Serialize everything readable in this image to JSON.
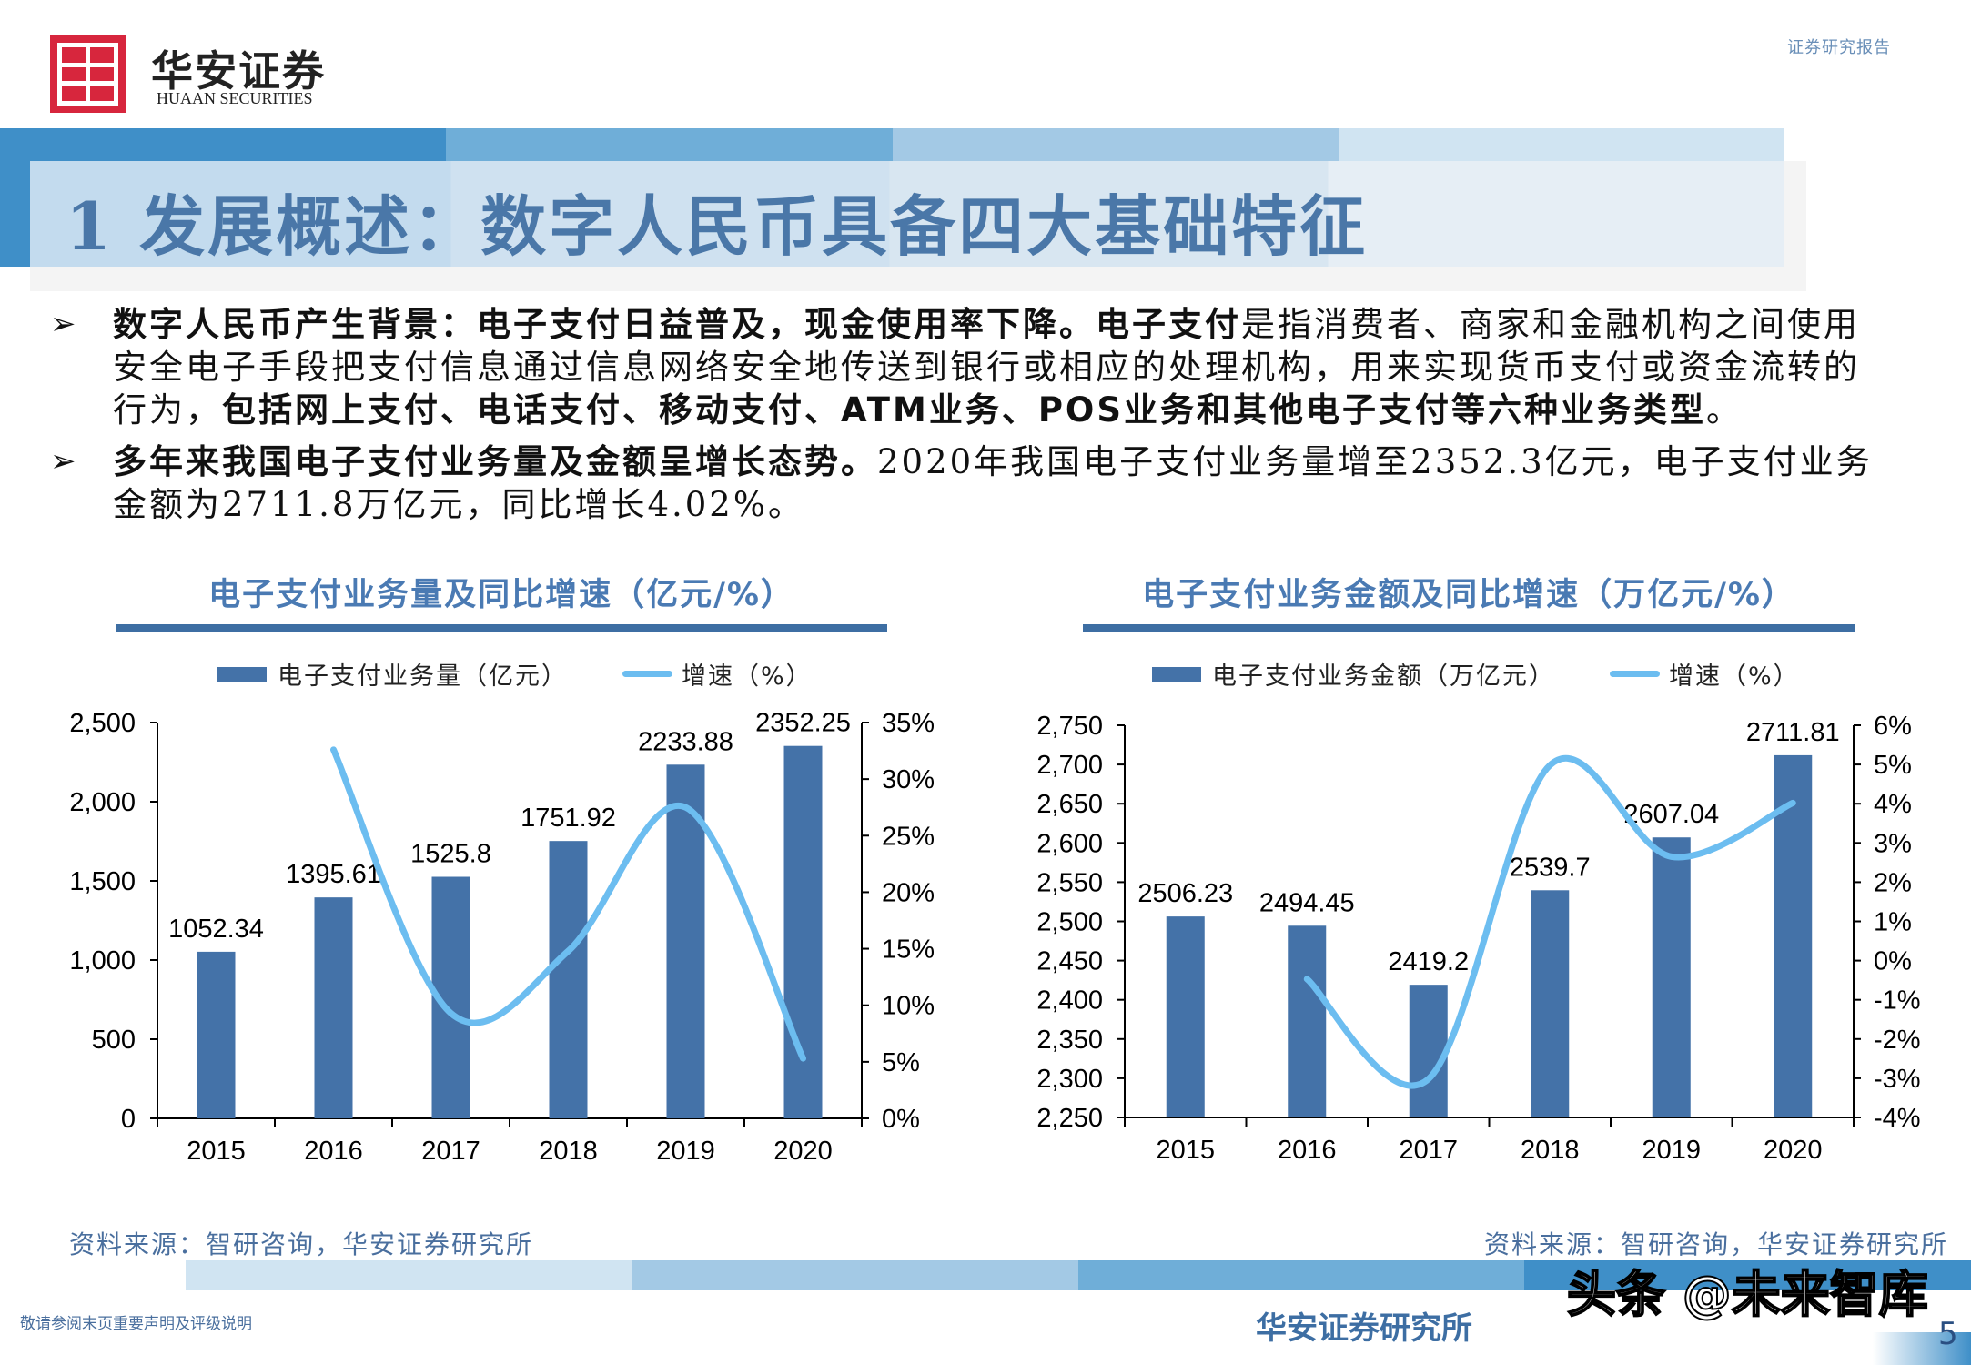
{
  "header": {
    "brand_cn": "华安证券",
    "brand_en": "HUAAN SECURITIES",
    "report_tag": "证券研究报告",
    "title": "1 发展概述：数字人民币具备四大基础特征"
  },
  "colors": {
    "strip": [
      "#3f8fc8",
      "#6faed8",
      "#a3c9e5",
      "#d0e4f2"
    ],
    "bar": "#4472a8",
    "line": "#6cbdf0",
    "title": "#4a77a8"
  },
  "bullets": [
    {
      "segments": [
        {
          "bold": true,
          "text": "数字人民币产生背景：电子支付日益普及，现金使用率下降。电子支付"
        },
        {
          "bold": false,
          "text": "是指消费者、商家和金融机构之间使用安全电子手段把支付信息通过信息网络安全地传送到银行或相应的处理机构，用来实现货币支付或资金流转的行为，"
        },
        {
          "bold": true,
          "text": "包括网上支付、电话支付、移动支付、ATM业务、POS业务和其他电子支付等六种业务类型"
        },
        {
          "bold": false,
          "text": "。"
        }
      ]
    },
    {
      "segments": [
        {
          "bold": true,
          "text": "多年来我国电子支付业务量及金额呈增长态势。"
        },
        {
          "bold": false,
          "text": "2020年我国电子支付业务量增至2352.3亿元，电子支付业务金额为2711.8万亿元，同比增长4.02%。"
        }
      ]
    }
  ],
  "chart_data": [
    {
      "type": "bar+line",
      "title": "电子支付业务量及同比增速（亿元/%）",
      "categories": [
        "2015",
        "2016",
        "2017",
        "2018",
        "2019",
        "2020"
      ],
      "series": [
        {
          "name": "电子支付业务量（亿元）",
          "type": "bar",
          "axis": "left",
          "values": [
            1052.34,
            1395.61,
            1525.8,
            1751.92,
            2233.88,
            2352.25
          ],
          "labels": [
            "1052.34",
            "1395.61",
            "1525.8",
            "1751.92",
            "2233.88",
            "2352.25"
          ]
        },
        {
          "name": "增速（%）",
          "type": "line",
          "axis": "right",
          "values": [
            null,
            32.6,
            9.3,
            14.8,
            27.5,
            5.3
          ]
        }
      ],
      "y_left": {
        "range": [
          0,
          2500
        ],
        "ticks": [
          "0",
          "500",
          "1,000",
          "1,500",
          "2,000",
          "2,500"
        ]
      },
      "y_right": {
        "range": [
          0,
          35
        ],
        "ticks": [
          "0%",
          "5%",
          "10%",
          "15%",
          "20%",
          "25%",
          "30%",
          "35%"
        ]
      },
      "legend": "top",
      "grid": false,
      "source": "资料来源：智研咨询，华安证券研究所"
    },
    {
      "type": "bar+line",
      "title": "电子支付业务金额及同比增速（万亿元/%）",
      "categories": [
        "2015",
        "2016",
        "2017",
        "2018",
        "2019",
        "2020"
      ],
      "series": [
        {
          "name": "电子支付业务金额（万亿元）",
          "type": "bar",
          "axis": "left",
          "values": [
            2506.23,
            2494.45,
            2419.2,
            2539.7,
            2607.04,
            2711.81
          ],
          "labels": [
            "2506.23",
            "2494.45",
            "2419.2",
            "2539.7",
            "2607.04",
            "2711.81"
          ]
        },
        {
          "name": "增速（%）",
          "type": "line",
          "axis": "right",
          "values": [
            null,
            -0.47,
            -3.02,
            4.98,
            2.65,
            4.02
          ]
        }
      ],
      "y_left": {
        "range": [
          2250,
          2750
        ],
        "ticks": [
          "2,250",
          "2,300",
          "2,350",
          "2,400",
          "2,450",
          "2,500",
          "2,550",
          "2,600",
          "2,650",
          "2,700",
          "2,750"
        ]
      },
      "y_right": {
        "range": [
          -4,
          6
        ],
        "ticks": [
          "-4%",
          "-3%",
          "-2%",
          "-1%",
          "0%",
          "1%",
          "2%",
          "3%",
          "4%",
          "5%",
          "6%"
        ]
      },
      "legend": "top",
      "grid": false,
      "source": "资料来源：智研咨询，华安证券研究所"
    }
  ],
  "footer": {
    "disclaimer": "敬请参阅末页重要声明及评级说明",
    "institute": "华安证券研究所",
    "watermark": "头条 @未来智库",
    "page": "5"
  }
}
